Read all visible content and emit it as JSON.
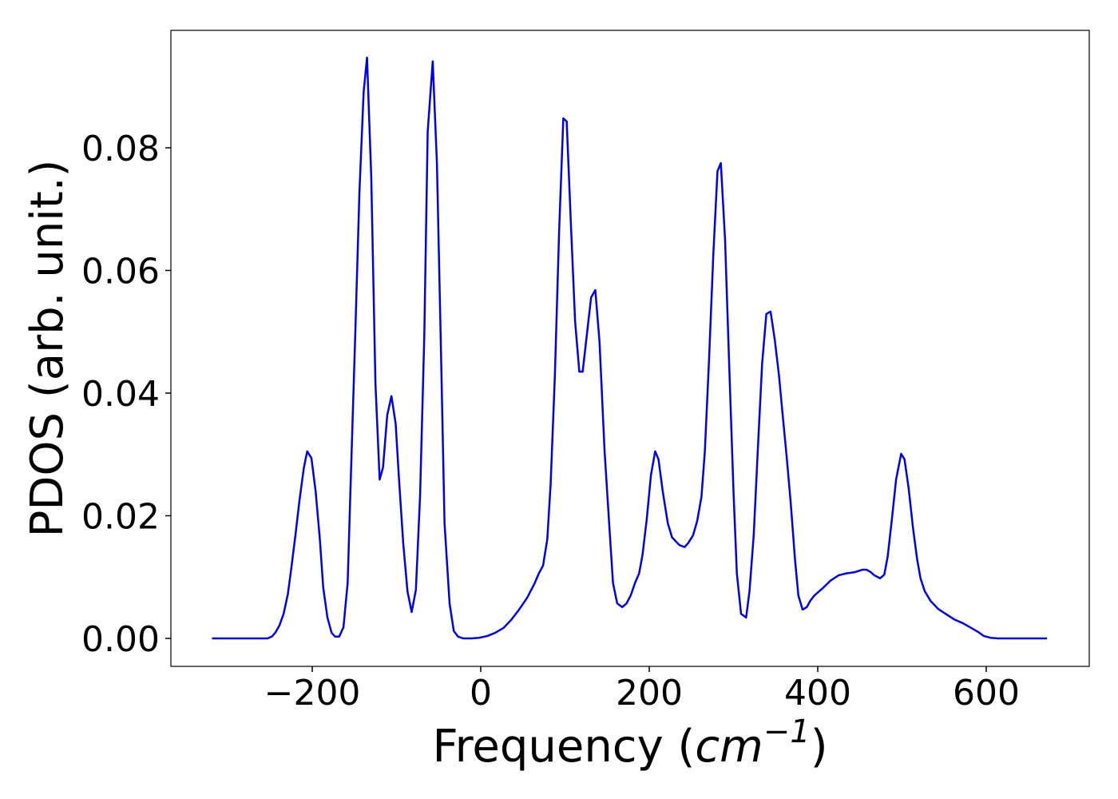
{
  "chart_data": {
    "type": "line",
    "xlabel": [
      "Frequency (",
      "cm",
      "−1",
      ")"
    ],
    "ylabel": "PDOS (arb. unit.)",
    "color": "#0000ee",
    "x": [
      -319,
      -253,
      -248,
      -244,
      -239,
      -234,
      -229,
      -225,
      -220,
      -215,
      -210,
      -206,
      -201,
      -196,
      -191,
      -187,
      -182,
      -177,
      -173,
      -168,
      -163,
      -158,
      -154,
      -149,
      -144,
      -139,
      -135,
      -130,
      -125,
      -120,
      -116,
      -111,
      -106,
      -101,
      -97,
      -92,
      -87,
      -82,
      -77,
      -72,
      -67,
      -63,
      -57,
      -52,
      -47,
      -43,
      -37,
      -32,
      -27,
      -21,
      -11,
      -2,
      8,
      17,
      27,
      36,
      45,
      55,
      64,
      69,
      74,
      79,
      83,
      88,
      93,
      98,
      102,
      107,
      112,
      117,
      121,
      126,
      131,
      136,
      141,
      147,
      153,
      157,
      162,
      168,
      173,
      178,
      183,
      188,
      192,
      197,
      202,
      207,
      211,
      216,
      222,
      227,
      231,
      236,
      242,
      246,
      252,
      257,
      262,
      266,
      271,
      276,
      281,
      285,
      290,
      295,
      300,
      304,
      309,
      315,
      319,
      324,
      329,
      334,
      339,
      344,
      349,
      354,
      358,
      363,
      368,
      373,
      377,
      382,
      387,
      391,
      396,
      406,
      415,
      425,
      434,
      444,
      453,
      458,
      463,
      467,
      474,
      479,
      483,
      488,
      493,
      499,
      503,
      508,
      513,
      518,
      522,
      527,
      534,
      543,
      553,
      562,
      572,
      581,
      591,
      597,
      605,
      614,
      672
    ],
    "values": [
      0,
      0,
      0.0003,
      0.0009,
      0.0021,
      0.004,
      0.0072,
      0.0113,
      0.0168,
      0.0227,
      0.0278,
      0.0305,
      0.0294,
      0.024,
      0.0162,
      0.0083,
      0.0034,
      0.0009,
      0.0003,
      0.0003,
      0.0018,
      0.009,
      0.0272,
      0.0494,
      0.0728,
      0.0891,
      0.0947,
      0.0754,
      0.0416,
      0.0259,
      0.0279,
      0.0364,
      0.0395,
      0.035,
      0.0259,
      0.0155,
      0.0077,
      0.0043,
      0.0079,
      0.0233,
      0.0494,
      0.0826,
      0.0941,
      0.0774,
      0.0455,
      0.0188,
      0.0057,
      0.0012,
      0.0003,
      0,
      0,
      0.0001,
      0.0004,
      0.0009,
      0.0017,
      0.003,
      0.0046,
      0.0066,
      0.009,
      0.0106,
      0.0119,
      0.0162,
      0.0253,
      0.0429,
      0.0663,
      0.0848,
      0.0843,
      0.0676,
      0.0517,
      0.0435,
      0.0435,
      0.0496,
      0.0556,
      0.0568,
      0.0483,
      0.0305,
      0.0175,
      0.009,
      0.0057,
      0.0051,
      0.0057,
      0.007,
      0.009,
      0.0106,
      0.0136,
      0.0194,
      0.0266,
      0.0305,
      0.0292,
      0.024,
      0.0188,
      0.0165,
      0.0159,
      0.0152,
      0.0149,
      0.0155,
      0.0168,
      0.0192,
      0.0231,
      0.0305,
      0.0455,
      0.0624,
      0.0762,
      0.0775,
      0.065,
      0.0442,
      0.024,
      0.0106,
      0.004,
      0.0034,
      0.0077,
      0.0168,
      0.0311,
      0.0448,
      0.0529,
      0.0533,
      0.0487,
      0.0429,
      0.037,
      0.0298,
      0.022,
      0.0129,
      0.007,
      0.0047,
      0.0051,
      0.0061,
      0.007,
      0.0082,
      0.0094,
      0.0103,
      0.0106,
      0.0108,
      0.0112,
      0.0112,
      0.0108,
      0.0103,
      0.0098,
      0.0104,
      0.0133,
      0.0194,
      0.0259,
      0.0301,
      0.0292,
      0.0244,
      0.0181,
      0.0129,
      0.0098,
      0.0077,
      0.0061,
      0.0048,
      0.0039,
      0.0031,
      0.0025,
      0.0018,
      0.001,
      0.0004,
      0.0001,
      0,
      0
    ],
    "xlim": [
      -367.8,
      722.3
    ],
    "ylim": [
      -0.00456,
      0.09915
    ],
    "xticks": [
      {
        "value": -200,
        "label": "−200"
      },
      0,
      200,
      400,
      600
    ],
    "yticks": [
      {
        "value": 0,
        "label": "0.00"
      },
      0.02,
      0.04,
      0.06,
      0.08
    ],
    "grid": false
  }
}
